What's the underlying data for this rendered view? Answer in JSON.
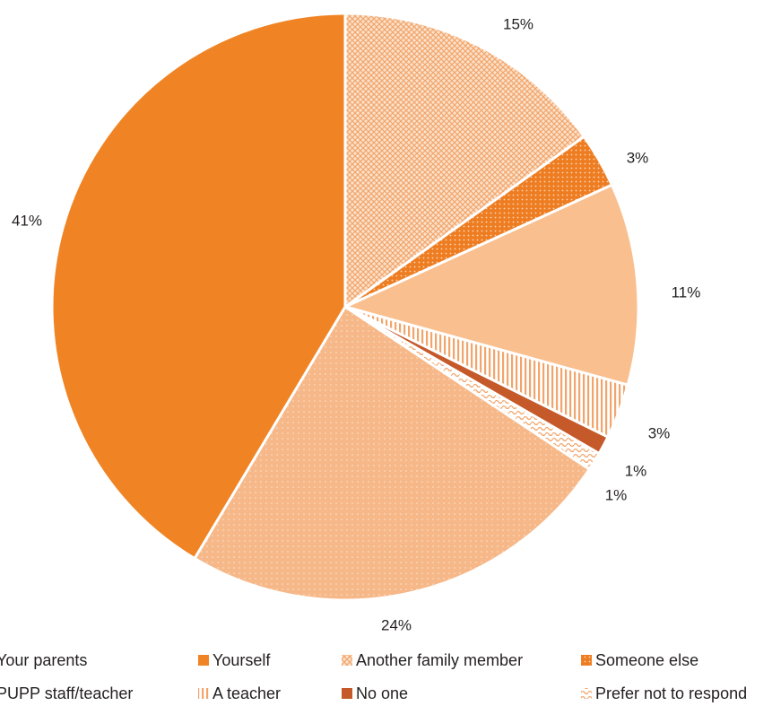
{
  "chart_data": {
    "type": "pie",
    "slices": [
      {
        "name": "Another family member",
        "value": 15,
        "label": "15%",
        "color": "#f2a56b",
        "pattern": "crosshatch"
      },
      {
        "name": "Someone else",
        "value": 3,
        "label": "3%",
        "color": "#ee7d22",
        "pattern": "dots"
      },
      {
        "name": "PUPP staff/teacher",
        "value": 11,
        "label": "11%",
        "color": "#f9bf8f",
        "pattern": "solid"
      },
      {
        "name": "A teacher",
        "value": 3,
        "label": "3%",
        "color": "#f2a56b",
        "pattern": "vlines"
      },
      {
        "name": "No one",
        "value": 1,
        "label": "1%",
        "color": "#c5592a",
        "pattern": "solid"
      },
      {
        "name": "Prefer not to respond",
        "value": 1,
        "label": "1%",
        "color": "#f2a56b",
        "pattern": "wave"
      },
      {
        "name": "Your parents",
        "value": 24,
        "label": "24%",
        "color": "#f6b888",
        "pattern": "finedots"
      },
      {
        "name": "Yourself",
        "value": 41,
        "label": "41%",
        "color": "#f08424",
        "pattern": "solid"
      }
    ],
    "legend": {
      "placement": "bottom",
      "rows": [
        [
          "Your parents",
          "Yourself",
          "Another family member",
          "Someone else"
        ],
        [
          "PUPP staff/teacher",
          "A teacher",
          "No one",
          "Prefer not to respond"
        ]
      ]
    }
  }
}
